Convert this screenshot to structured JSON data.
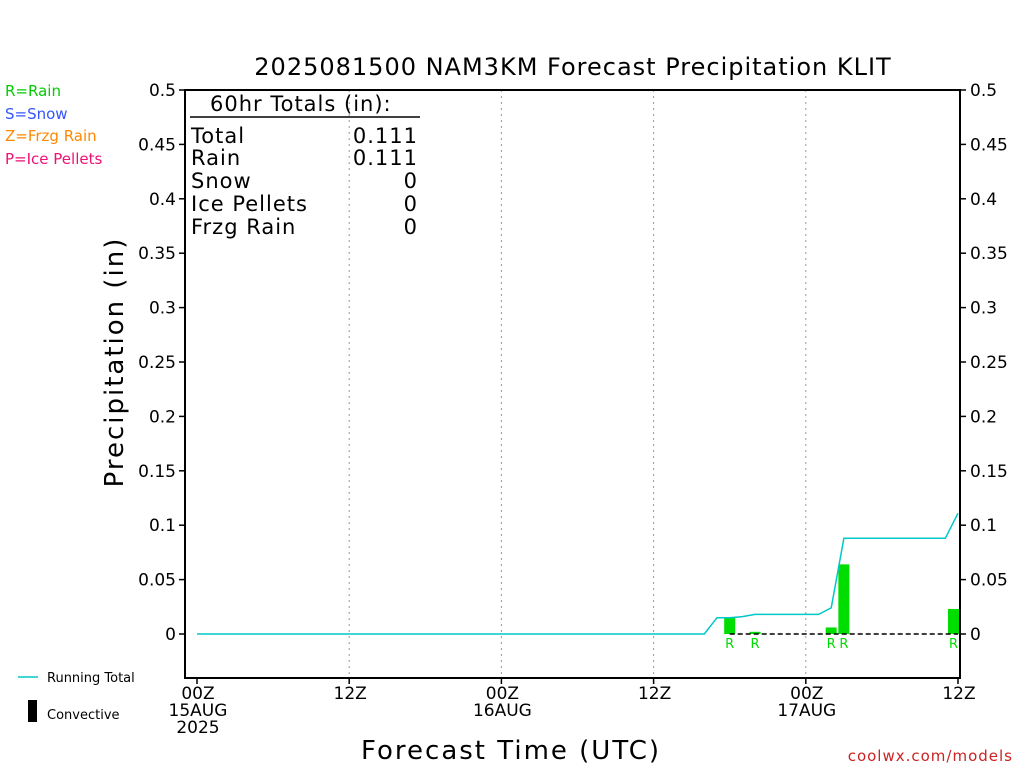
{
  "chart_data": {
    "type": "bar",
    "title": "2025081500 NAM3KM Forecast Precipitation KLIT",
    "xlabel": "Forecast Time (UTC)",
    "ylabel": "Precipitation (in)",
    "ylim": [
      -0.04,
      0.5
    ],
    "xlim_hours": [
      0,
      60
    ],
    "yticks": [
      0,
      0.05,
      0.1,
      0.15,
      0.2,
      0.25,
      0.3,
      0.35,
      0.4,
      0.45,
      0.5
    ],
    "ytick_labels": [
      "0",
      "0.05",
      "0.1",
      "0.15",
      "0.2",
      "0.25",
      "0.3",
      "0.35",
      "0.4",
      "0.45",
      "0.5"
    ],
    "xticks": [
      {
        "hour": 0,
        "lines": [
          "00Z",
          "15AUG",
          "2025"
        ]
      },
      {
        "hour": 12,
        "lines": [
          "12Z"
        ]
      },
      {
        "hour": 24,
        "lines": [
          "00Z",
          "16AUG"
        ]
      },
      {
        "hour": 36,
        "lines": [
          "12Z"
        ]
      },
      {
        "hour": 48,
        "lines": [
          "00Z",
          "17AUG"
        ]
      },
      {
        "hour": 60,
        "lines": [
          "12Z"
        ]
      }
    ],
    "vertical_gridlines_hours": [
      12,
      24,
      36,
      48
    ],
    "grid": "vertical dotted",
    "bars": [
      {
        "hour": 42,
        "value": 0.015,
        "type": "R"
      },
      {
        "hour": 44,
        "value": 0.002,
        "type": "R"
      },
      {
        "hour": 50,
        "value": 0.006,
        "type": "R"
      },
      {
        "hour": 51,
        "value": 0.064,
        "type": "R"
      },
      {
        "hour": 60,
        "value": 0.023,
        "type": "R"
      }
    ],
    "bar_color": "#00dd00",
    "running_total": {
      "name": "Running Total",
      "color": "#00c8c8",
      "points": [
        [
          0,
          0
        ],
        [
          40,
          0
        ],
        [
          41,
          0.015
        ],
        [
          42,
          0.015
        ],
        [
          43,
          0.016
        ],
        [
          44,
          0.018
        ],
        [
          47,
          0.018
        ],
        [
          48,
          0.018
        ],
        [
          49,
          0.018
        ],
        [
          50,
          0.024
        ],
        [
          51,
          0.088
        ],
        [
          56,
          0.088
        ],
        [
          59,
          0.088
        ],
        [
          60,
          0.111
        ]
      ]
    },
    "convective_line": {
      "from_hour": 42,
      "to_hour": 60,
      "value": 0
    }
  },
  "totals": {
    "header": "60hr Totals (in):",
    "rows": [
      {
        "label": "Total",
        "value": "0.111"
      },
      {
        "label": "Rain",
        "value": "0.111"
      },
      {
        "label": "Snow",
        "value": "0"
      },
      {
        "label": "Ice Pellets",
        "value": "0"
      },
      {
        "label": "Frzg Rain",
        "value": "0"
      }
    ]
  },
  "type_legend": [
    {
      "text": "R=Rain",
      "color": "#00cc00"
    },
    {
      "text": "S=Snow",
      "color": "#3355ff"
    },
    {
      "text": "Z=Frzg Rain",
      "color": "#ff8800"
    },
    {
      "text": "P=Ice Pellets",
      "color": "#ee1177"
    }
  ],
  "bottom_legend": {
    "running_total": "Running Total",
    "convective": "Convective"
  },
  "credit": "coolwx.com/models",
  "credit_color": "#cc2222"
}
